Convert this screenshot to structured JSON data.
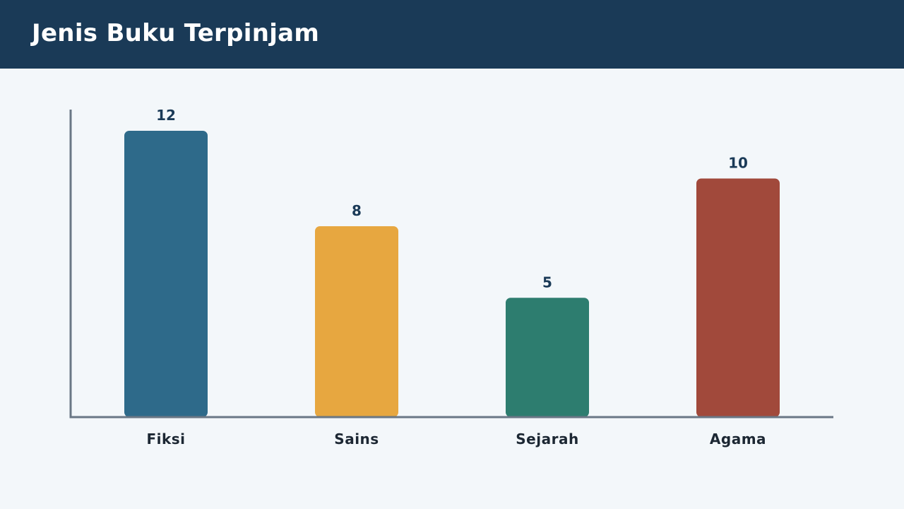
{
  "chart_data": {
    "type": "bar",
    "title": "Jenis Buku Terpinjam",
    "categories": [
      "Fiksi",
      "Sains",
      "Sejarah",
      "Agama"
    ],
    "values": [
      12,
      8,
      5,
      10
    ],
    "colors": [
      "#2e6a8a",
      "#e7a740",
      "#2d7d6f",
      "#a1493b"
    ],
    "xlabel": "",
    "ylabel": "",
    "ylim": [
      0,
      13
    ],
    "grid": false,
    "legend": "none",
    "axis_color": "#6a7785"
  }
}
